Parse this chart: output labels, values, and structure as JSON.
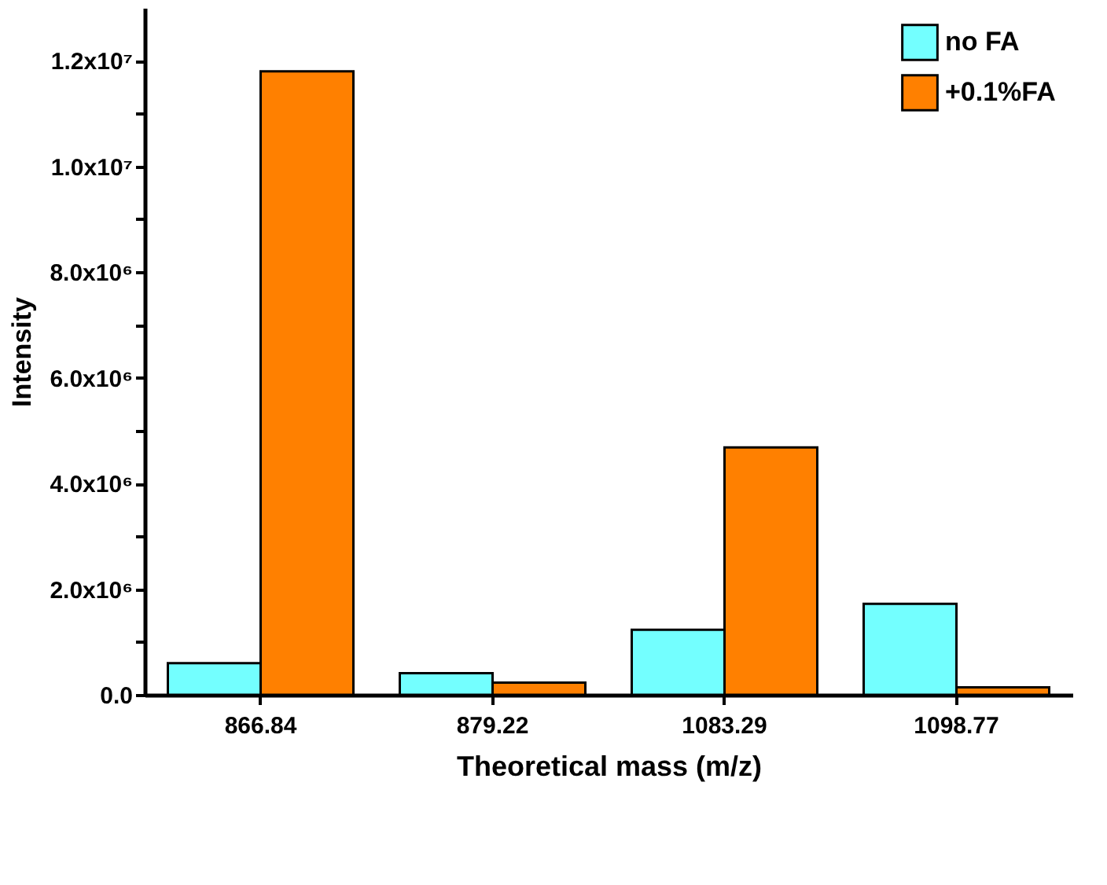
{
  "chart_data": {
    "type": "bar",
    "xlabel": "Theoretical mass (m/z)",
    "ylabel": "Intensity",
    "categories": [
      "866.84",
      "879.22",
      "1083.29",
      "1098.77"
    ],
    "series": [
      {
        "name": "no FA",
        "color": "#73ffff",
        "values": [
          600000,
          410000,
          1230000,
          1720000
        ]
      },
      {
        "name": "+0.1%FA",
        "color": "#ff8000",
        "values": [
          11800000,
          230000,
          4680000,
          140000
        ]
      }
    ],
    "ylim": [
      0,
      13000000
    ],
    "yticks": [
      {
        "value": 0,
        "label": "0.0"
      },
      {
        "value": 1000000,
        "label": null
      },
      {
        "value": 2000000,
        "label": "2.0x10⁶"
      },
      {
        "value": 3000000,
        "label": null
      },
      {
        "value": 4000000,
        "label": "4.0x10⁶"
      },
      {
        "value": 5000000,
        "label": null
      },
      {
        "value": 6000000,
        "label": "6.0x10⁶"
      },
      {
        "value": 7000000,
        "label": null
      },
      {
        "value": 8000000,
        "label": "8.0x10⁶"
      },
      {
        "value": 9000000,
        "label": null
      },
      {
        "value": 10000000,
        "label": "1.0x10⁷"
      },
      {
        "value": 11000000,
        "label": null
      },
      {
        "value": 12000000,
        "label": "1.2x10⁷"
      }
    ],
    "legend": "top right",
    "grid": false
  }
}
